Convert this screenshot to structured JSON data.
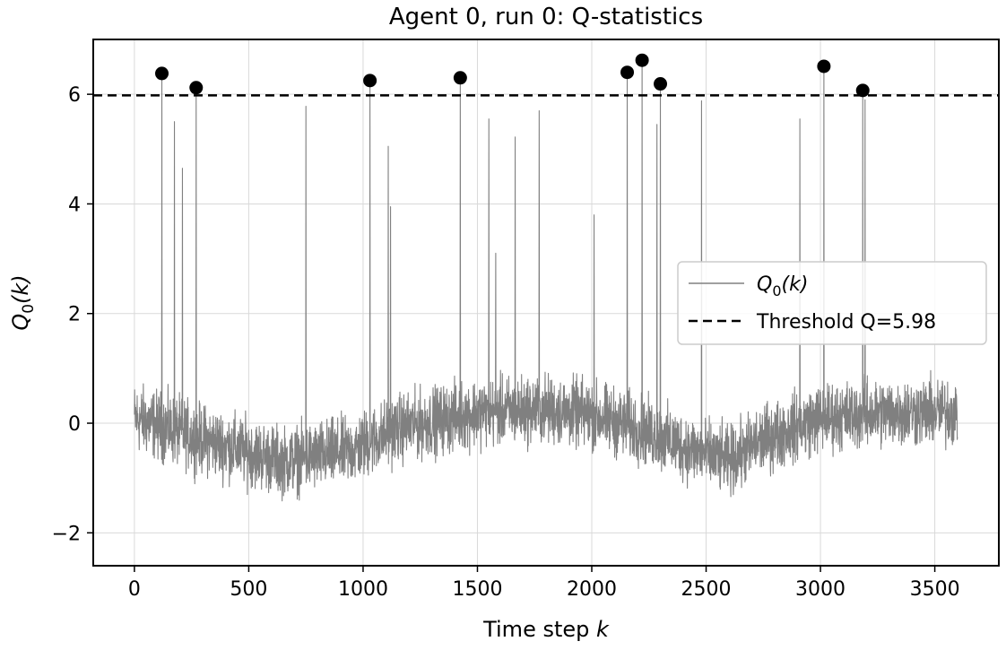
{
  "chart_data": {
    "type": "line",
    "title": "Agent 0, run 0: Q-statistics",
    "xlabel_text": "Time step ",
    "xlabel_var": "k",
    "ylabel_text": "Q",
    "ylabel_sub": "0",
    "ylabel_arg": "(k)",
    "xlim": [
      -180,
      3780
    ],
    "ylim": [
      -2.6,
      7.0
    ],
    "x_ticks": [
      0,
      500,
      1000,
      1500,
      2000,
      2500,
      3000,
      3500
    ],
    "x_tick_labels": [
      "0",
      "500",
      "1000",
      "1500",
      "2000",
      "2500",
      "3000",
      "3500"
    ],
    "y_ticks": [
      -2,
      0,
      2,
      4,
      6
    ],
    "y_tick_labels": [
      "−2",
      "0",
      "2",
      "4",
      "6"
    ],
    "grid": true,
    "legend_position": "center-right",
    "series": [
      {
        "name_text": "Q",
        "name_sub": "0",
        "name_arg": "(k)",
        "color": "#808080",
        "style": "solid",
        "n_points": 3600,
        "baseline_trend": [
          [
            0,
            0.1
          ],
          [
            300,
            -0.3
          ],
          [
            650,
            -0.7
          ],
          [
            950,
            -0.5
          ],
          [
            1150,
            -0.1
          ],
          [
            1500,
            0.2
          ],
          [
            1800,
            0.25
          ],
          [
            2000,
            0.15
          ],
          [
            2200,
            -0.1
          ],
          [
            2450,
            -0.5
          ],
          [
            2600,
            -0.7
          ],
          [
            2750,
            -0.3
          ],
          [
            3000,
            0.1
          ],
          [
            3300,
            0.2
          ],
          [
            3600,
            0.2
          ]
        ],
        "noise_amplitude": 0.3,
        "spikes": [
          {
            "x": 120,
            "y": 6.38
          },
          {
            "x": 175,
            "y": 5.5
          },
          {
            "x": 210,
            "y": 4.65
          },
          {
            "x": 270,
            "y": 6.12
          },
          {
            "x": 750,
            "y": 5.78
          },
          {
            "x": 1030,
            "y": 6.25
          },
          {
            "x": 1110,
            "y": 5.05
          },
          {
            "x": 1120,
            "y": 3.95
          },
          {
            "x": 1425,
            "y": 6.3
          },
          {
            "x": 1550,
            "y": 5.55
          },
          {
            "x": 1580,
            "y": 3.1
          },
          {
            "x": 1665,
            "y": 5.22
          },
          {
            "x": 1770,
            "y": 5.7
          },
          {
            "x": 2010,
            "y": 3.8
          },
          {
            "x": 2155,
            "y": 6.4
          },
          {
            "x": 2220,
            "y": 6.62
          },
          {
            "x": 2285,
            "y": 5.45
          },
          {
            "x": 2300,
            "y": 6.19
          },
          {
            "x": 2480,
            "y": 5.88
          },
          {
            "x": 2910,
            "y": 5.55
          },
          {
            "x": 3015,
            "y": 6.51
          },
          {
            "x": 3185,
            "y": 6.07
          },
          {
            "x": 3195,
            "y": 5.9
          }
        ]
      },
      {
        "name": "Threshold Q=5.98",
        "color": "#000000",
        "style": "dashed",
        "value": 5.98
      }
    ],
    "anomalies": [
      {
        "x": 120,
        "y": 6.38
      },
      {
        "x": 270,
        "y": 6.12
      },
      {
        "x": 1030,
        "y": 6.25
      },
      {
        "x": 1425,
        "y": 6.3
      },
      {
        "x": 2155,
        "y": 6.4
      },
      {
        "x": 2220,
        "y": 6.62
      },
      {
        "x": 2300,
        "y": 6.19
      },
      {
        "x": 3015,
        "y": 6.51
      },
      {
        "x": 3185,
        "y": 6.07
      }
    ]
  }
}
